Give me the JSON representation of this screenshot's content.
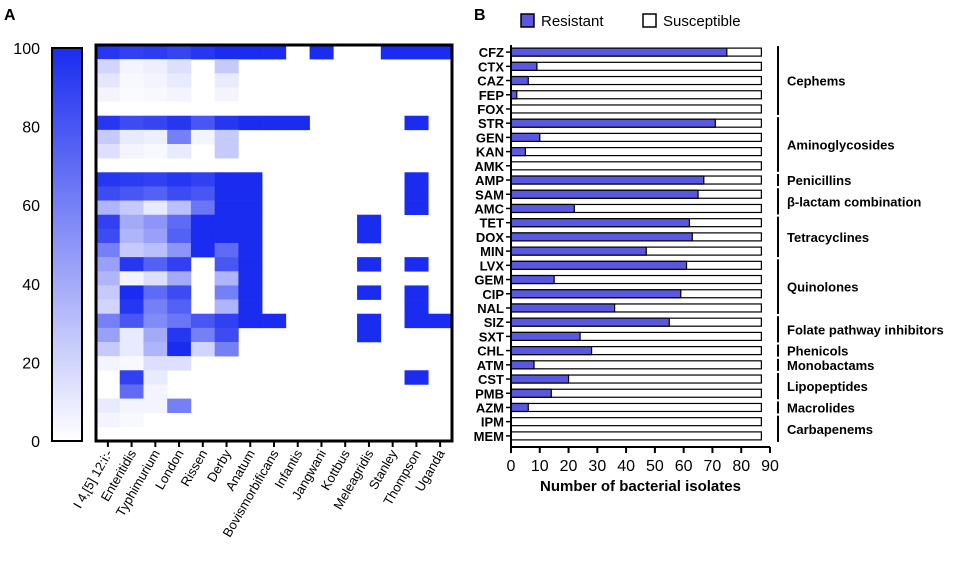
{
  "chart_data": [
    {
      "type": "heatmap",
      "panel_label": "A",
      "scale": {
        "ticks": [
          "0",
          "20",
          "40",
          "60",
          "80",
          "100"
        ],
        "min": 0,
        "max": 100
      },
      "colors": {
        "high": "#1a2cf0",
        "low": "#ffffff"
      },
      "columns": [
        "I 4,[5] 12:i:-",
        "Enteritidis",
        "Typhimurium",
        "London",
        "Rissen",
        "Derby",
        "Anatum",
        "Bovismorbificans",
        "Infantis",
        "Jangwani",
        "Kottbus",
        "Meleagridis",
        "Stanley",
        "Thompson",
        "Uganda"
      ],
      "rows": [
        "CFZ",
        "CTX",
        "CAZ",
        "FEP",
        "FOX",
        "STR",
        "GEN",
        "KAN",
        "AMK",
        "AMP",
        "SAM",
        "AMC",
        "TET",
        "DOX",
        "MIN",
        "LVX",
        "GEM",
        "CIP",
        "NAL",
        "SIZ",
        "SXT",
        "CHL",
        "ATM",
        "CST",
        "PMB",
        "AZM",
        "IPM",
        "MEM"
      ],
      "values": [
        [
          95,
          90,
          92,
          88,
          95,
          100,
          100,
          100,
          0,
          100,
          0,
          0,
          100,
          100,
          100
        ],
        [
          20,
          5,
          8,
          15,
          0,
          25,
          0,
          0,
          0,
          0,
          0,
          0,
          0,
          0,
          0
        ],
        [
          12,
          3,
          5,
          10,
          0,
          10,
          0,
          0,
          0,
          0,
          0,
          0,
          0,
          0,
          0
        ],
        [
          5,
          2,
          3,
          5,
          0,
          5,
          0,
          0,
          0,
          0,
          0,
          0,
          0,
          0,
          0
        ],
        [
          0,
          0,
          0,
          0,
          0,
          0,
          0,
          0,
          0,
          0,
          0,
          0,
          0,
          0,
          0
        ],
        [
          95,
          85,
          88,
          95,
          80,
          95,
          100,
          100,
          100,
          0,
          0,
          0,
          0,
          100,
          0
        ],
        [
          25,
          10,
          8,
          60,
          5,
          25,
          0,
          0,
          0,
          0,
          0,
          0,
          0,
          0,
          0
        ],
        [
          15,
          5,
          3,
          10,
          0,
          25,
          0,
          0,
          0,
          0,
          0,
          0,
          0,
          0,
          0
        ],
        [
          0,
          0,
          0,
          0,
          0,
          0,
          0,
          0,
          0,
          0,
          0,
          0,
          0,
          0,
          0
        ],
        [
          95,
          92,
          90,
          95,
          90,
          100,
          100,
          0,
          0,
          0,
          0,
          0,
          0,
          100,
          0
        ],
        [
          85,
          80,
          75,
          85,
          80,
          100,
          100,
          0,
          0,
          0,
          0,
          0,
          0,
          100,
          0
        ],
        [
          35,
          25,
          10,
          30,
          65,
          100,
          100,
          0,
          0,
          0,
          0,
          0,
          0,
          100,
          0
        ],
        [
          90,
          40,
          50,
          70,
          100,
          100,
          100,
          0,
          0,
          0,
          0,
          100,
          0,
          0,
          0
        ],
        [
          85,
          35,
          45,
          75,
          100,
          100,
          100,
          0,
          0,
          0,
          0,
          100,
          0,
          0,
          0
        ],
        [
          60,
          25,
          30,
          50,
          100,
          70,
          100,
          0,
          0,
          0,
          0,
          0,
          0,
          0,
          0
        ],
        [
          45,
          95,
          75,
          90,
          0,
          80,
          100,
          0,
          0,
          0,
          0,
          100,
          0,
          100,
          0
        ],
        [
          35,
          5,
          15,
          40,
          0,
          35,
          100,
          0,
          0,
          0,
          0,
          0,
          0,
          0,
          0
        ],
        [
          25,
          100,
          70,
          85,
          0,
          60,
          100,
          0,
          0,
          0,
          0,
          100,
          0,
          100,
          0
        ],
        [
          20,
          95,
          60,
          75,
          0,
          35,
          100,
          0,
          0,
          0,
          0,
          0,
          0,
          100,
          0
        ],
        [
          60,
          80,
          55,
          65,
          80,
          90,
          100,
          100,
          0,
          0,
          0,
          100,
          0,
          100,
          100
        ],
        [
          45,
          10,
          40,
          95,
          60,
          85,
          0,
          0,
          0,
          0,
          0,
          100,
          0,
          0,
          0
        ],
        [
          25,
          10,
          35,
          100,
          20,
          60,
          0,
          0,
          0,
          0,
          0,
          0,
          0,
          0,
          0
        ],
        [
          5,
          3,
          15,
          15,
          0,
          0,
          0,
          0,
          0,
          0,
          0,
          0,
          0,
          0,
          0
        ],
        [
          0,
          90,
          10,
          0,
          0,
          0,
          0,
          0,
          0,
          0,
          0,
          0,
          0,
          100,
          0
        ],
        [
          0,
          70,
          5,
          0,
          0,
          0,
          0,
          0,
          0,
          0,
          0,
          0,
          0,
          0,
          0
        ],
        [
          10,
          5,
          5,
          60,
          0,
          0,
          0,
          0,
          0,
          0,
          0,
          0,
          0,
          0,
          0
        ],
        [
          5,
          3,
          0,
          0,
          0,
          0,
          0,
          0,
          0,
          0,
          0,
          0,
          0,
          0,
          0
        ],
        [
          0,
          0,
          0,
          0,
          0,
          0,
          0,
          0,
          0,
          0,
          0,
          0,
          0,
          0,
          0
        ]
      ]
    },
    {
      "type": "bar",
      "orientation": "horizontal-stacked",
      "panel_label": "B",
      "categories": [
        "CFZ",
        "CTX",
        "CAZ",
        "FEP",
        "FOX",
        "STR",
        "GEN",
        "KAN",
        "AMK",
        "AMP",
        "SAM",
        "AMC",
        "TET",
        "DOX",
        "MIN",
        "LVX",
        "GEM",
        "CIP",
        "NAL",
        "SIZ",
        "SXT",
        "CHL",
        "ATM",
        "CST",
        "PMB",
        "AZM",
        "IPM",
        "MEM"
      ],
      "total": 87,
      "series": [
        {
          "name": "Resistant",
          "color": "#5a57e0",
          "values": [
            75,
            9,
            6,
            2,
            0,
            71,
            10,
            5,
            0,
            67,
            65,
            22,
            62,
            63,
            47,
            61,
            15,
            59,
            36,
            55,
            24,
            28,
            8,
            20,
            14,
            6,
            0,
            0
          ]
        },
        {
          "name": "Susceptible",
          "color": "#ffffff",
          "values": [
            12,
            78,
            81,
            85,
            87,
            16,
            77,
            82,
            87,
            20,
            22,
            65,
            25,
            24,
            40,
            26,
            72,
            28,
            51,
            32,
            63,
            59,
            79,
            67,
            73,
            81,
            87,
            87
          ]
        }
      ],
      "xlabel": "Number of bacterial isolates",
      "xlim": [
        0,
        90
      ],
      "xticks": [
        "0",
        "10",
        "20",
        "30",
        "40",
        "50",
        "60",
        "70",
        "80",
        "90"
      ],
      "legend": "top",
      "groups": [
        {
          "name": "Cephems",
          "from": 0,
          "to": 4
        },
        {
          "name": "Aminoglycosides",
          "from": 5,
          "to": 8
        },
        {
          "name": "Penicillins",
          "from": 9,
          "to": 9
        },
        {
          "name": "β-lactam combination",
          "from": 10,
          "to": 11
        },
        {
          "name": "Tetracyclines",
          "from": 12,
          "to": 14
        },
        {
          "name": "Quinolones",
          "from": 15,
          "to": 18
        },
        {
          "name": "Folate pathway inhibitors",
          "from": 19,
          "to": 20
        },
        {
          "name": "Phenicols",
          "from": 21,
          "to": 21
        },
        {
          "name": "Monobactams",
          "from": 22,
          "to": 22
        },
        {
          "name": "Lipopeptides",
          "from": 23,
          "to": 24
        },
        {
          "name": "Macrolides",
          "from": 25,
          "to": 25
        },
        {
          "name": "Carbapenems",
          "from": 26,
          "to": 27
        }
      ]
    }
  ]
}
